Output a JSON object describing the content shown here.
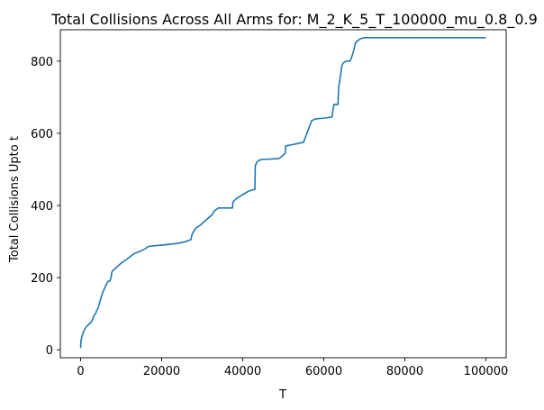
{
  "chart_data": {
    "type": "line",
    "title": "Total Collisions Across All Arms for: M_2_K_5_T_100000_mu_0.8_0.9",
    "xlabel": "T",
    "ylabel": "Total Collisions Upto t",
    "xlim": [
      -5000,
      105000
    ],
    "ylim": [
      -22,
      887
    ],
    "xticks": [
      0,
      20000,
      40000,
      60000,
      80000,
      100000
    ],
    "xtick_labels": [
      "0",
      "20000",
      "40000",
      "60000",
      "80000",
      "100000"
    ],
    "yticks": [
      0,
      200,
      400,
      600,
      800
    ],
    "ytick_labels": [
      "0",
      "200",
      "400",
      "600",
      "800"
    ],
    "grid": false,
    "line_color": "#1f77b4",
    "series": [
      {
        "name": "Total Collisions",
        "x": [
          0,
          100,
          400,
          900,
          1500,
          2000,
          2500,
          3000,
          3300,
          3700,
          4000,
          4300,
          4800,
          5200,
          5500,
          5900,
          6300,
          6800,
          7200,
          7500,
          7700,
          8000,
          9000,
          10000,
          11000,
          12000,
          13000,
          13500,
          14000,
          15000,
          16000,
          16500,
          17000,
          20000,
          24000,
          26000,
          27200,
          27500,
          28000,
          28500,
          29500,
          30500,
          31500,
          32000,
          32500,
          33000,
          34000,
          35000,
          37500,
          37600,
          38500,
          40000,
          41500,
          43000,
          43100,
          43500,
          44000,
          45000,
          46000,
          49000,
          50000,
          50500,
          50600,
          52000,
          55000,
          55500,
          56000,
          56500,
          57000,
          58000,
          60000,
          62000,
          62200,
          62500,
          63500,
          63700,
          64200,
          64400,
          64800,
          65500,
          66500,
          67000,
          67400,
          67800,
          68200,
          69000,
          70000,
          75000,
          80000,
          90000,
          100000
        ],
        "y": [
          5,
          25,
          40,
          55,
          65,
          70,
          75,
          85,
          95,
          100,
          110,
          115,
          135,
          150,
          160,
          170,
          180,
          190,
          190,
          200,
          215,
          220,
          230,
          240,
          248,
          256,
          265,
          268,
          270,
          275,
          280,
          285,
          287,
          290,
          295,
          300,
          305,
          320,
          330,
          338,
          345,
          355,
          365,
          370,
          375,
          385,
          393,
          393,
          393,
          410,
          420,
          430,
          440,
          445,
          510,
          520,
          525,
          528,
          528,
          530,
          540,
          545,
          565,
          568,
          575,
          590,
          605,
          620,
          635,
          640,
          642,
          645,
          660,
          680,
          680,
          730,
          765,
          785,
          795,
          800,
          800,
          815,
          830,
          850,
          855,
          862,
          865,
          865,
          865,
          865,
          865
        ]
      }
    ]
  }
}
